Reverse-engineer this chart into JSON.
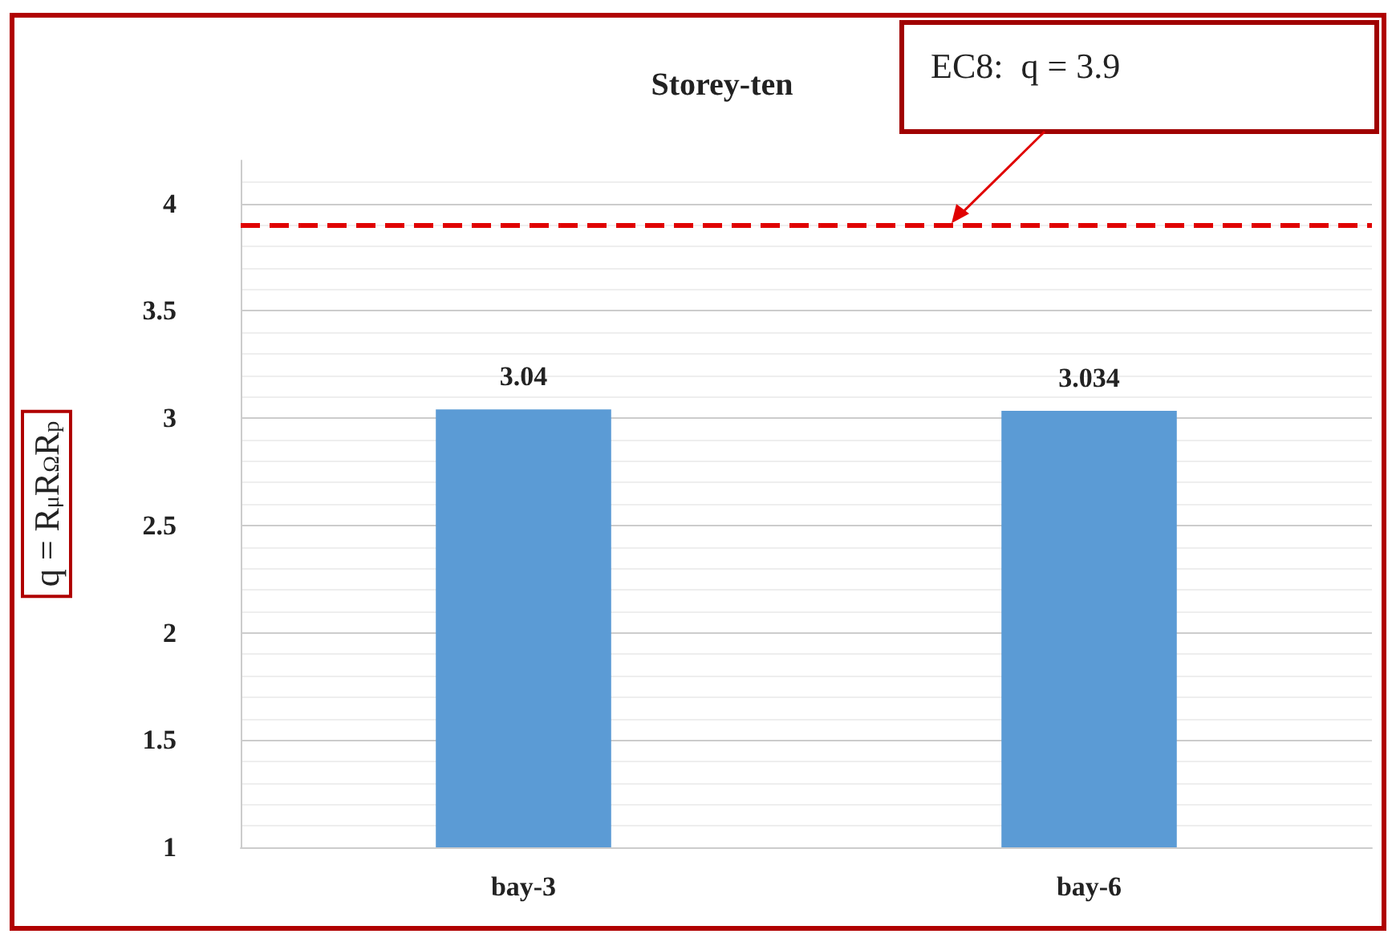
{
  "chart_data": {
    "type": "bar",
    "title": "Storey-ten",
    "ylabel": "q = R$_{μ}$R$_{Ω}$R$_{p}$",
    "categories": [
      "bay-3",
      "bay-6"
    ],
    "series": [
      {
        "color": "#5b9bd5",
        "values": [
          3.04,
          3.034
        ]
      }
    ],
    "ylim": [
      1,
      4.2
    ],
    "yticks": [
      1,
      1.5,
      2,
      2.5,
      3,
      3.5,
      4
    ],
    "grid": "y",
    "data_labels": true,
    "ref_lines": [
      {
        "axis": "y",
        "value": 3.9,
        "label": "EC8:  q = 3.9",
        "color": "#e00000",
        "line_style": "dashed"
      }
    ]
  }
}
